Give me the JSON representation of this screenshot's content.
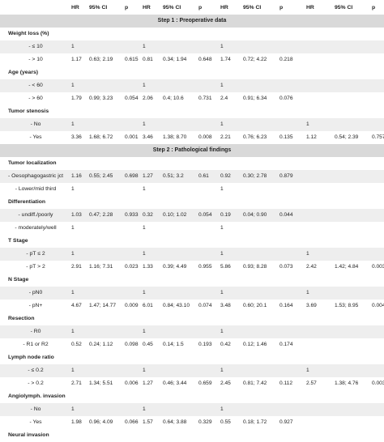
{
  "header": [
    "HR",
    "95% CI",
    "p",
    "HR",
    "95% CI",
    "p",
    "HR",
    "95% CI",
    "p",
    "HR",
    "95% CI",
    "p"
  ],
  "rows": [
    {
      "type": "section",
      "text": "Step 1 : Preoperative data"
    },
    {
      "type": "group",
      "text": "Weight loss (%)"
    },
    {
      "type": "data",
      "label": "- ≤ 10",
      "cells": [
        "1",
        "",
        "",
        "1",
        "",
        "",
        "1",
        "",
        "",
        "",
        "",
        ""
      ]
    },
    {
      "type": "data",
      "label": "- > 10",
      "cells": [
        "1.17",
        "0.63; 2.19",
        "0.615",
        "0.81",
        "0.34; 1.94",
        "0.648",
        "1.74",
        "0.72; 4.22",
        "0.218",
        "",
        "",
        ""
      ]
    },
    {
      "type": "group",
      "text": "Age (years)"
    },
    {
      "type": "data",
      "label": "- < 60",
      "cells": [
        "1",
        "",
        "",
        "1",
        "",
        "",
        "1",
        "",
        "",
        "",
        "",
        ""
      ]
    },
    {
      "type": "data",
      "label": "- > 60",
      "cells": [
        "1.79",
        "0.99; 3.23",
        "0.054",
        "2.06",
        "0.4; 10.6",
        "0.731",
        "2.4",
        "0.91; 6.34",
        "0.076",
        "",
        "",
        ""
      ]
    },
    {
      "type": "group",
      "text": "Tumor stenosis"
    },
    {
      "type": "data",
      "label": "- No",
      "cells": [
        "1",
        "",
        "",
        "1",
        "",
        "",
        "1",
        "",
        "",
        "1",
        "",
        ""
      ]
    },
    {
      "type": "data",
      "label": "- Yes",
      "cells": [
        "3.36",
        "1.68; 6.72",
        "0.001",
        "3.46",
        "1.38; 8.70",
        "0.008",
        "2.21",
        "0.76; 6.23",
        "0.135",
        "1.12",
        "0.54; 2.39",
        "0.757"
      ]
    },
    {
      "type": "section",
      "text": "Step 2 : Pathological findings"
    },
    {
      "type": "group",
      "text": "Tumor localization"
    },
    {
      "type": "data",
      "label": "- Oesophagogastric jct",
      "cells": [
        "1.16",
        "0.55; 2.45",
        "0.698",
        "1.27",
        "0.51; 3.2",
        "0.61",
        "0.92",
        "0.30; 2.78",
        "0.879",
        "",
        "",
        ""
      ]
    },
    {
      "type": "data",
      "label": "- Lower/mid third",
      "cells": [
        "1",
        "",
        "",
        "1",
        "",
        "",
        "1",
        "",
        "",
        "",
        "",
        ""
      ]
    },
    {
      "type": "group",
      "text": "Differentiation"
    },
    {
      "type": "data",
      "label": "- undiff./poorly",
      "cells": [
        "1.03",
        "0.47; 2.28",
        "0.933",
        "0.32",
        "0.10; 1.02",
        "0.054",
        "0.19",
        "0.04; 0.90",
        "0.044",
        "",
        "",
        ""
      ]
    },
    {
      "type": "data",
      "label": "- moderately/well",
      "cells": [
        "1",
        "",
        "",
        "1",
        "",
        "",
        "1",
        "",
        "",
        "",
        "",
        ""
      ]
    },
    {
      "type": "group",
      "text": "T Stage"
    },
    {
      "type": "data",
      "label": "- pT ≤ 2",
      "cells": [
        "1",
        "",
        "",
        "1",
        "",
        "",
        "1",
        "",
        "",
        "1",
        "",
        ""
      ]
    },
    {
      "type": "data",
      "label": "- pT > 2",
      "cells": [
        "2.91",
        "1.16; 7.31",
        "0.023",
        "1.33",
        "0.39; 4.49",
        "0.955",
        "5.86",
        "0.93; 8.28",
        "0.073",
        "2.42",
        "1.42; 4.84",
        "0.003"
      ]
    },
    {
      "type": "group",
      "text": "N Stage"
    },
    {
      "type": "data",
      "label": "- pN0",
      "cells": [
        "1",
        "",
        "",
        "1",
        "",
        "",
        "1",
        "",
        "",
        "1",
        "",
        ""
      ]
    },
    {
      "type": "data",
      "label": "- pN+",
      "cells": [
        "4.67",
        "1.47; 14.77",
        "0.009",
        "6.01",
        "0.84; 43.10",
        "0.074",
        "3.48",
        "0.60; 20.1",
        "0.164",
        "3.69",
        "1.53; 8.95",
        "0.004"
      ]
    },
    {
      "type": "group",
      "text": "Resection"
    },
    {
      "type": "data",
      "label": "- R0",
      "cells": [
        "1",
        "",
        "",
        "1",
        "",
        "",
        "1",
        "",
        "",
        "",
        "",
        ""
      ]
    },
    {
      "type": "data",
      "label": "- R1 or R2",
      "cells": [
        "0.52",
        "0.24; 1.12",
        "0.098",
        "0.45",
        "0.14; 1.5",
        "0.193",
        "0.42",
        "0.12; 1.46",
        "0.174",
        "",
        "",
        ""
      ]
    },
    {
      "type": "group",
      "text": "Lymph node ratio"
    },
    {
      "type": "data",
      "label": "- ≤ 0.2",
      "cells": [
        "1",
        "",
        "",
        "1",
        "",
        "",
        "1",
        "",
        "",
        "1",
        "",
        ""
      ]
    },
    {
      "type": "data",
      "label": "- > 0.2",
      "cells": [
        "2.71",
        "1.34; 5.51",
        "0.006",
        "1.27",
        "0.46; 3.44",
        "0.659",
        "2.45",
        "0.81; 7.42",
        "0.112",
        "2.57",
        "1.38; 4.76",
        "0.003"
      ]
    },
    {
      "type": "group",
      "text": "Angiolymph. invasion"
    },
    {
      "type": "data",
      "label": "- No",
      "cells": [
        "1",
        "",
        "",
        "1",
        "",
        "",
        "1",
        "",
        "",
        "",
        "",
        ""
      ]
    },
    {
      "type": "data",
      "label": "- Yes",
      "cells": [
        "1.98",
        "0.96; 4.09",
        "0.066",
        "1.57",
        "0.64; 3.88",
        "0.329",
        "0.55",
        "0.18; 1.72",
        "0.927",
        "",
        "",
        ""
      ]
    },
    {
      "type": "group",
      "text": "Neural invasion"
    }
  ]
}
